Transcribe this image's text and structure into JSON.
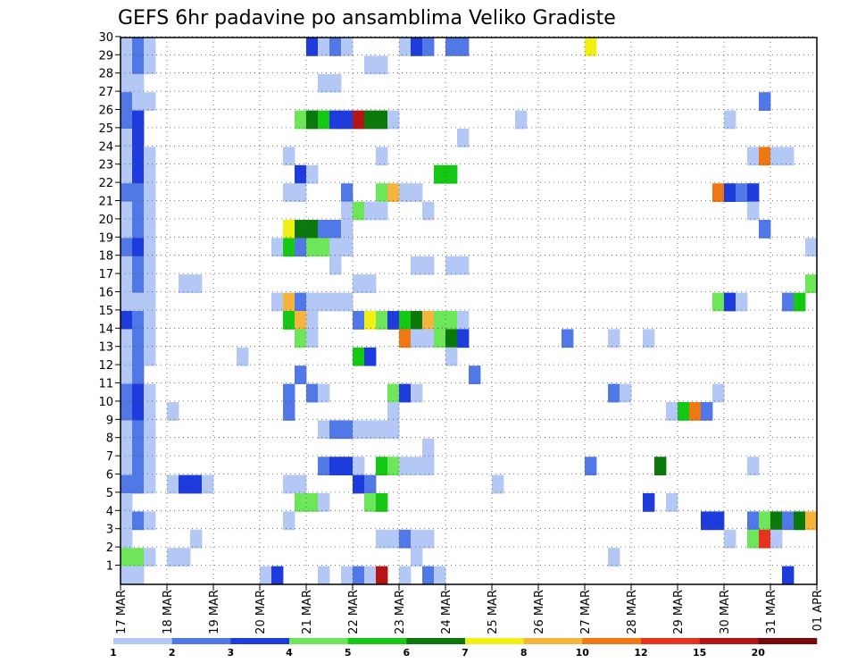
{
  "chart_data": {
    "type": "heatmap",
    "title": "GEFS 6hr padavine po ansamblima Veliko Gradiste",
    "xlabel": "",
    "ylabel": "",
    "x_ticks": [
      "17 MAR",
      "18 MAR",
      "19 MAR",
      "20 MAR",
      "21 MAR",
      "22 MAR",
      "23 MAR",
      "24 MAR",
      "25 MAR",
      "26 MAR",
      "27 MAR",
      "28 MAR",
      "29 MAR",
      "30 MAR",
      "31 MAR",
      "01 APR"
    ],
    "y_ticks": [
      "1",
      "2",
      "3",
      "4",
      "5",
      "6",
      "7",
      "8",
      "9",
      "10",
      "11",
      "12",
      "13",
      "14",
      "15",
      "16",
      "17",
      "18",
      "19",
      "20",
      "21",
      "22",
      "23",
      "24",
      "25",
      "26",
      "27",
      "28",
      "29",
      "30"
    ],
    "n_steps_per_day": 4,
    "grid": true,
    "colorbar": {
      "labels": [
        "1",
        "2",
        "3",
        "4",
        "5",
        "6",
        "7",
        "8",
        "10",
        "12",
        "15",
        "20"
      ],
      "colors": [
        "#b4c8f5",
        "#5078e6",
        "#1e3cdc",
        "#6ee65a",
        "#14c814",
        "#0a780a",
        "#f0f014",
        "#f5b43c",
        "#f07814",
        "#e6321e",
        "#b41414",
        "#780a0a"
      ]
    },
    "note_step_index": "x = 6-hour step index from 17 MAR 00Z (0 = 17 MAR 00Z, 60 = 01 APR 00Z)",
    "cells": [
      [
        30,
        0,
        1
      ],
      [
        30,
        1,
        2
      ],
      [
        30,
        2,
        1
      ],
      [
        30,
        16,
        3
      ],
      [
        30,
        17,
        1
      ],
      [
        30,
        18,
        2
      ],
      [
        30,
        19,
        1
      ],
      [
        30,
        24,
        1
      ],
      [
        30,
        25,
        3
      ],
      [
        30,
        26,
        2
      ],
      [
        30,
        28,
        2
      ],
      [
        30,
        29,
        2
      ],
      [
        30,
        40,
        7
      ],
      [
        29,
        0,
        1
      ],
      [
        29,
        1,
        2
      ],
      [
        29,
        2,
        1
      ],
      [
        29,
        21,
        1
      ],
      [
        29,
        22,
        1
      ],
      [
        28,
        0,
        1
      ],
      [
        28,
        1,
        1
      ],
      [
        28,
        17,
        1
      ],
      [
        28,
        18,
        1
      ],
      [
        27,
        0,
        2
      ],
      [
        27,
        1,
        1
      ],
      [
        27,
        2,
        1
      ],
      [
        27,
        55,
        2
      ],
      [
        26,
        0,
        2
      ],
      [
        26,
        1,
        3
      ],
      [
        26,
        15,
        4
      ],
      [
        26,
        16,
        6
      ],
      [
        26,
        17,
        5
      ],
      [
        26,
        18,
        3
      ],
      [
        26,
        19,
        3
      ],
      [
        26,
        20,
        11
      ],
      [
        26,
        21,
        6
      ],
      [
        26,
        22,
        6
      ],
      [
        26,
        23,
        1
      ],
      [
        26,
        34,
        1
      ],
      [
        26,
        52,
        1
      ],
      [
        25,
        0,
        1
      ],
      [
        25,
        1,
        3
      ],
      [
        25,
        29,
        1
      ],
      [
        24,
        0,
        1
      ],
      [
        24,
        1,
        3
      ],
      [
        24,
        2,
        1
      ],
      [
        24,
        14,
        1
      ],
      [
        24,
        22,
        1
      ],
      [
        24,
        54,
        1
      ],
      [
        24,
        55,
        9
      ],
      [
        24,
        56,
        1
      ],
      [
        24,
        57,
        1
      ],
      [
        23,
        0,
        1
      ],
      [
        23,
        1,
        3
      ],
      [
        23,
        2,
        1
      ],
      [
        23,
        15,
        3
      ],
      [
        23,
        16,
        1
      ],
      [
        23,
        27,
        5
      ],
      [
        23,
        28,
        5
      ],
      [
        22,
        0,
        2
      ],
      [
        22,
        1,
        2
      ],
      [
        22,
        2,
        1
      ],
      [
        22,
        14,
        1
      ],
      [
        22,
        15,
        1
      ],
      [
        22,
        19,
        2
      ],
      [
        22,
        22,
        4
      ],
      [
        22,
        23,
        8
      ],
      [
        22,
        24,
        1
      ],
      [
        22,
        25,
        1
      ],
      [
        22,
        51,
        9
      ],
      [
        22,
        52,
        3
      ],
      [
        22,
        53,
        2
      ],
      [
        22,
        54,
        3
      ],
      [
        21,
        0,
        1
      ],
      [
        21,
        1,
        2
      ],
      [
        21,
        2,
        1
      ],
      [
        21,
        19,
        1
      ],
      [
        21,
        20,
        4
      ],
      [
        21,
        21,
        1
      ],
      [
        21,
        22,
        1
      ],
      [
        21,
        26,
        1
      ],
      [
        21,
        54,
        1
      ],
      [
        20,
        0,
        1
      ],
      [
        20,
        1,
        2
      ],
      [
        20,
        2,
        1
      ],
      [
        20,
        14,
        7
      ],
      [
        20,
        15,
        6
      ],
      [
        20,
        16,
        6
      ],
      [
        20,
        17,
        2
      ],
      [
        20,
        18,
        2
      ],
      [
        20,
        19,
        1
      ],
      [
        20,
        55,
        2
      ],
      [
        19,
        0,
        2
      ],
      [
        19,
        1,
        3
      ],
      [
        19,
        2,
        1
      ],
      [
        19,
        13,
        1
      ],
      [
        19,
        14,
        5
      ],
      [
        19,
        15,
        2
      ],
      [
        19,
        16,
        4
      ],
      [
        19,
        17,
        4
      ],
      [
        19,
        18,
        1
      ],
      [
        19,
        19,
        1
      ],
      [
        19,
        59,
        1
      ],
      [
        18,
        0,
        1
      ],
      [
        18,
        1,
        2
      ],
      [
        18,
        2,
        1
      ],
      [
        18,
        18,
        1
      ],
      [
        18,
        25,
        1
      ],
      [
        18,
        26,
        1
      ],
      [
        18,
        28,
        1
      ],
      [
        18,
        29,
        1
      ],
      [
        17,
        0,
        1
      ],
      [
        17,
        1,
        2
      ],
      [
        17,
        2,
        1
      ],
      [
        17,
        5,
        1
      ],
      [
        17,
        6,
        1
      ],
      [
        17,
        20,
        1
      ],
      [
        17,
        21,
        1
      ],
      [
        17,
        59,
        4
      ],
      [
        17,
        60,
        2
      ],
      [
        16,
        0,
        1
      ],
      [
        16,
        1,
        1
      ],
      [
        16,
        2,
        1
      ],
      [
        16,
        13,
        1
      ],
      [
        16,
        14,
        8
      ],
      [
        16,
        15,
        2
      ],
      [
        16,
        16,
        1
      ],
      [
        16,
        17,
        1
      ],
      [
        16,
        18,
        1
      ],
      [
        16,
        19,
        1
      ],
      [
        16,
        51,
        4
      ],
      [
        16,
        52,
        3
      ],
      [
        16,
        53,
        1
      ],
      [
        16,
        57,
        2
      ],
      [
        16,
        58,
        5
      ],
      [
        16,
        60,
        1
      ],
      [
        15,
        0,
        3
      ],
      [
        15,
        1,
        2
      ],
      [
        15,
        2,
        1
      ],
      [
        15,
        14,
        5
      ],
      [
        15,
        15,
        8
      ],
      [
        15,
        16,
        1
      ],
      [
        15,
        20,
        2
      ],
      [
        15,
        21,
        7
      ],
      [
        15,
        22,
        4
      ],
      [
        15,
        23,
        3
      ],
      [
        15,
        24,
        5
      ],
      [
        15,
        25,
        6
      ],
      [
        15,
        26,
        8
      ],
      [
        15,
        27,
        4
      ],
      [
        15,
        28,
        4
      ],
      [
        15,
        29,
        1
      ],
      [
        14,
        0,
        1
      ],
      [
        14,
        1,
        2
      ],
      [
        14,
        2,
        1
      ],
      [
        14,
        15,
        4
      ],
      [
        14,
        16,
        1
      ],
      [
        14,
        24,
        9
      ],
      [
        14,
        25,
        1
      ],
      [
        14,
        26,
        1
      ],
      [
        14,
        27,
        4
      ],
      [
        14,
        28,
        6
      ],
      [
        14,
        29,
        3
      ],
      [
        14,
        38,
        2
      ],
      [
        14,
        42,
        1
      ],
      [
        14,
        45,
        1
      ],
      [
        13,
        0,
        1
      ],
      [
        13,
        1,
        2
      ],
      [
        13,
        2,
        1
      ],
      [
        13,
        10,
        1
      ],
      [
        13,
        20,
        5
      ],
      [
        13,
        21,
        3
      ],
      [
        13,
        28,
        1
      ],
      [
        13,
        60,
        1
      ],
      [
        12,
        0,
        1
      ],
      [
        12,
        1,
        2
      ],
      [
        12,
        15,
        2
      ],
      [
        12,
        30,
        2
      ],
      [
        11,
        0,
        2
      ],
      [
        11,
        1,
        3
      ],
      [
        11,
        2,
        1
      ],
      [
        11,
        14,
        2
      ],
      [
        11,
        16,
        2
      ],
      [
        11,
        17,
        1
      ],
      [
        11,
        23,
        4
      ],
      [
        11,
        24,
        3
      ],
      [
        11,
        25,
        1
      ],
      [
        11,
        42,
        2
      ],
      [
        11,
        43,
        1
      ],
      [
        11,
        51,
        1
      ],
      [
        10,
        0,
        2
      ],
      [
        10,
        1,
        3
      ],
      [
        10,
        2,
        1
      ],
      [
        10,
        4,
        1
      ],
      [
        10,
        14,
        2
      ],
      [
        10,
        23,
        1
      ],
      [
        10,
        47,
        1
      ],
      [
        10,
        48,
        5
      ],
      [
        10,
        49,
        9
      ],
      [
        10,
        50,
        2
      ],
      [
        9,
        0,
        1
      ],
      [
        9,
        1,
        2
      ],
      [
        9,
        2,
        1
      ],
      [
        9,
        17,
        1
      ],
      [
        9,
        18,
        2
      ],
      [
        9,
        19,
        2
      ],
      [
        9,
        20,
        1
      ],
      [
        9,
        21,
        1
      ],
      [
        9,
        22,
        1
      ],
      [
        9,
        23,
        1
      ],
      [
        8,
        0,
        1
      ],
      [
        8,
        1,
        2
      ],
      [
        8,
        2,
        1
      ],
      [
        8,
        26,
        1
      ],
      [
        7,
        0,
        1
      ],
      [
        7,
        1,
        2
      ],
      [
        7,
        2,
        1
      ],
      [
        7,
        17,
        2
      ],
      [
        7,
        18,
        3
      ],
      [
        7,
        19,
        3
      ],
      [
        7,
        20,
        1
      ],
      [
        7,
        22,
        5
      ],
      [
        7,
        23,
        4
      ],
      [
        7,
        24,
        1
      ],
      [
        7,
        25,
        1
      ],
      [
        7,
        26,
        1
      ],
      [
        7,
        40,
        2
      ],
      [
        7,
        46,
        6
      ],
      [
        7,
        54,
        1
      ],
      [
        6,
        0,
        2
      ],
      [
        6,
        1,
        2
      ],
      [
        6,
        2,
        1
      ],
      [
        6,
        4,
        1
      ],
      [
        6,
        5,
        3
      ],
      [
        6,
        6,
        3
      ],
      [
        6,
        7,
        1
      ],
      [
        6,
        14,
        1
      ],
      [
        6,
        15,
        1
      ],
      [
        6,
        20,
        3
      ],
      [
        6,
        21,
        2
      ],
      [
        6,
        32,
        1
      ],
      [
        5,
        0,
        1
      ],
      [
        5,
        15,
        4
      ],
      [
        5,
        16,
        4
      ],
      [
        5,
        17,
        1
      ],
      [
        5,
        21,
        4
      ],
      [
        5,
        22,
        5
      ],
      [
        5,
        45,
        3
      ],
      [
        5,
        47,
        1
      ],
      [
        4,
        0,
        1
      ],
      [
        4,
        1,
        2
      ],
      [
        4,
        2,
        1
      ],
      [
        4,
        14,
        1
      ],
      [
        4,
        50,
        3
      ],
      [
        4,
        51,
        3
      ],
      [
        4,
        54,
        2
      ],
      [
        4,
        55,
        4
      ],
      [
        4,
        56,
        6
      ],
      [
        4,
        57,
        2
      ],
      [
        4,
        58,
        6
      ],
      [
        4,
        59,
        8
      ],
      [
        3,
        0,
        1
      ],
      [
        3,
        6,
        1
      ],
      [
        3,
        22,
        1
      ],
      [
        3,
        23,
        1
      ],
      [
        3,
        24,
        2
      ],
      [
        3,
        25,
        1
      ],
      [
        3,
        26,
        1
      ],
      [
        3,
        52,
        1
      ],
      [
        3,
        54,
        4
      ],
      [
        3,
        55,
        10
      ],
      [
        3,
        56,
        1
      ],
      [
        2,
        0,
        4
      ],
      [
        2,
        1,
        4
      ],
      [
        2,
        2,
        1
      ],
      [
        2,
        4,
        1
      ],
      [
        2,
        5,
        1
      ],
      [
        2,
        25,
        1
      ],
      [
        2,
        42,
        1
      ],
      [
        1,
        0,
        1
      ],
      [
        1,
        1,
        1
      ],
      [
        1,
        12,
        1
      ],
      [
        1,
        13,
        3
      ],
      [
        1,
        17,
        1
      ],
      [
        1,
        19,
        1
      ],
      [
        1,
        20,
        2
      ],
      [
        1,
        21,
        1
      ],
      [
        1,
        22,
        11
      ],
      [
        1,
        24,
        1
      ],
      [
        1,
        26,
        2
      ],
      [
        1,
        27,
        1
      ],
      [
        1,
        57,
        3
      ]
    ]
  }
}
